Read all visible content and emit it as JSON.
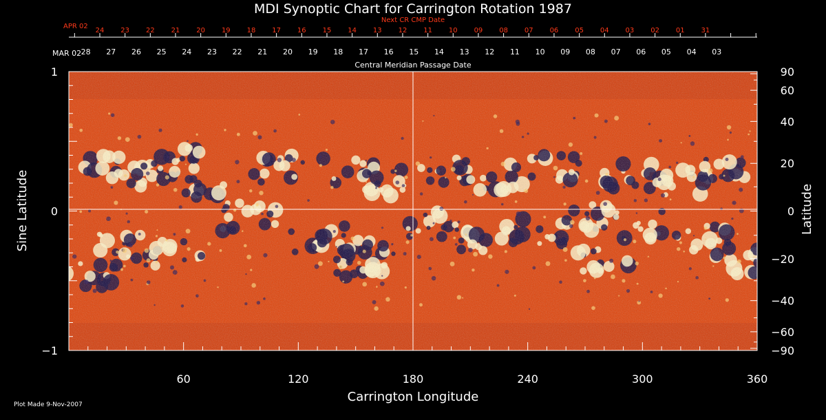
{
  "chart_data": {
    "type": "heatmap",
    "title": "MDI Synoptic Chart for Carrington Rotation 1987",
    "xlabel": "Carrington Longitude",
    "ylabel_left": "Sine Latitude",
    "ylabel_right": "Latitude",
    "xlim": [
      0,
      360
    ],
    "ylim": [
      -1,
      1
    ],
    "x_ticks": [
      "60",
      "120",
      "180",
      "240",
      "300",
      "360"
    ],
    "y_ticks_left": [
      "1",
      "0",
      "−1"
    ],
    "y_ticks_right": [
      "90",
      "60",
      "40",
      "20",
      "0",
      "−20",
      "−40",
      "−60",
      "−90"
    ],
    "cmp_axis": {
      "label": "Central Meridian Passage Date",
      "start_label": "MAR 02",
      "dates": [
        "28",
        "27",
        "26",
        "25",
        "24",
        "23",
        "22",
        "21",
        "20",
        "19",
        "18",
        "17",
        "16",
        "15",
        "14",
        "13",
        "12",
        "11",
        "10",
        "09",
        "08",
        "07",
        "06",
        "05",
        "04",
        "03"
      ]
    },
    "next_cr_axis": {
      "label": "Next CR CMP Date",
      "start_label": "APR 02",
      "dates": [
        "24",
        "23",
        "22",
        "21",
        "20",
        "19",
        "18",
        "17",
        "16",
        "15",
        "14",
        "13",
        "12",
        "11",
        "10",
        "09",
        "08",
        "07",
        "06",
        "05",
        "04",
        "03",
        "02",
        "01",
        "31"
      ]
    },
    "colors": {
      "background": "#000000",
      "next_cr_text": "#ff3a1a",
      "map_low": "#140a40",
      "map_mid": "#e8420a",
      "map_high": "#ffffff"
    }
  },
  "footer": {
    "plot_made": "Plot Made  9-Nov-2007"
  }
}
